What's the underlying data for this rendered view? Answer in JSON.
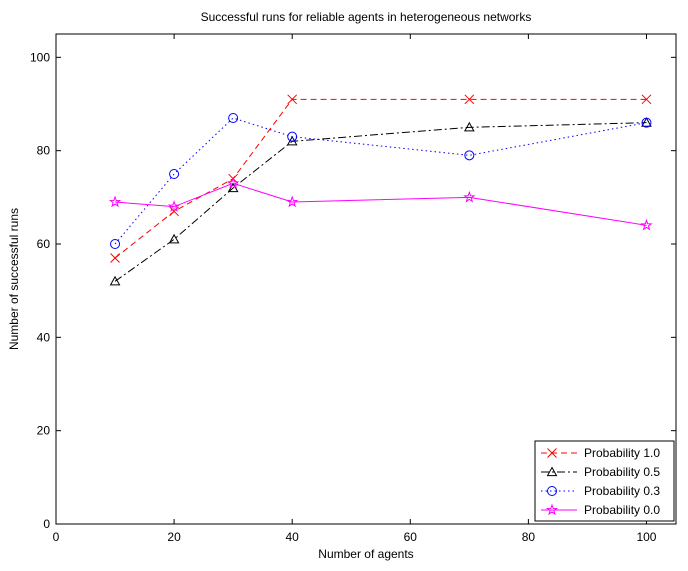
{
  "chart_data": {
    "type": "line",
    "title": "Successful runs for reliable agents in heterogeneous networks",
    "xlabel": "Number of agents",
    "ylabel": "Number of successful runs",
    "xlim": [
      0,
      105
    ],
    "ylim": [
      0,
      105
    ],
    "x_ticks": [
      0,
      20,
      40,
      60,
      80,
      100
    ],
    "y_ticks": [
      0,
      20,
      40,
      60,
      80,
      100
    ],
    "grid": false,
    "legend_position": "bottom-right",
    "x": [
      10,
      20,
      30,
      40,
      70,
      100
    ],
    "series": [
      {
        "name": "Probability 1.0",
        "values": [
          57,
          67,
          74,
          91,
          91,
          91
        ],
        "color": "#ff0000",
        "marker": "x",
        "dash": "6,4"
      },
      {
        "name": "Probability 0.5",
        "values": [
          52,
          61,
          72,
          82,
          85,
          86
        ],
        "color": "#000000",
        "marker": "triangle",
        "dash": "8,3,2,3"
      },
      {
        "name": "Probability 0.3",
        "values": [
          60,
          75,
          87,
          83,
          79,
          86
        ],
        "color": "#0000ff",
        "marker": "circle",
        "dash": "1.5,3"
      },
      {
        "name": "Probability 0.0",
        "values": [
          69,
          68,
          73,
          69,
          70,
          64
        ],
        "color": "#ff00ff",
        "marker": "star",
        "dash": ""
      }
    ]
  }
}
